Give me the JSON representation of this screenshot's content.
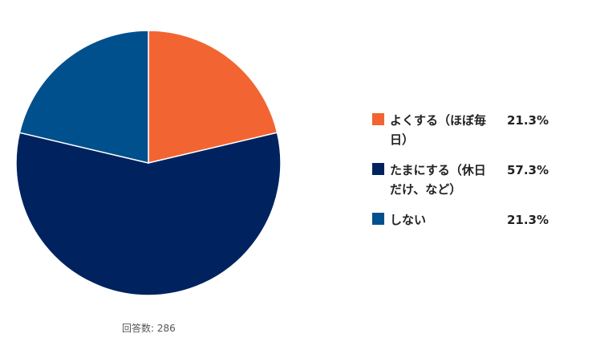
{
  "chart_data": {
    "type": "pie",
    "categories": [
      "よくする（ほぼ毎日）",
      "たまにする（休日だけ、など）",
      "しない"
    ],
    "values": [
      21.3,
      57.3,
      21.3
    ],
    "value_labels": [
      "21.3%",
      "57.3%",
      "21.3%"
    ],
    "colors": [
      "#f26532",
      "#00235f",
      "#00508e"
    ],
    "legend_position": "right",
    "start_angle": "top, clockwise"
  },
  "footnote": "回答数: 286"
}
